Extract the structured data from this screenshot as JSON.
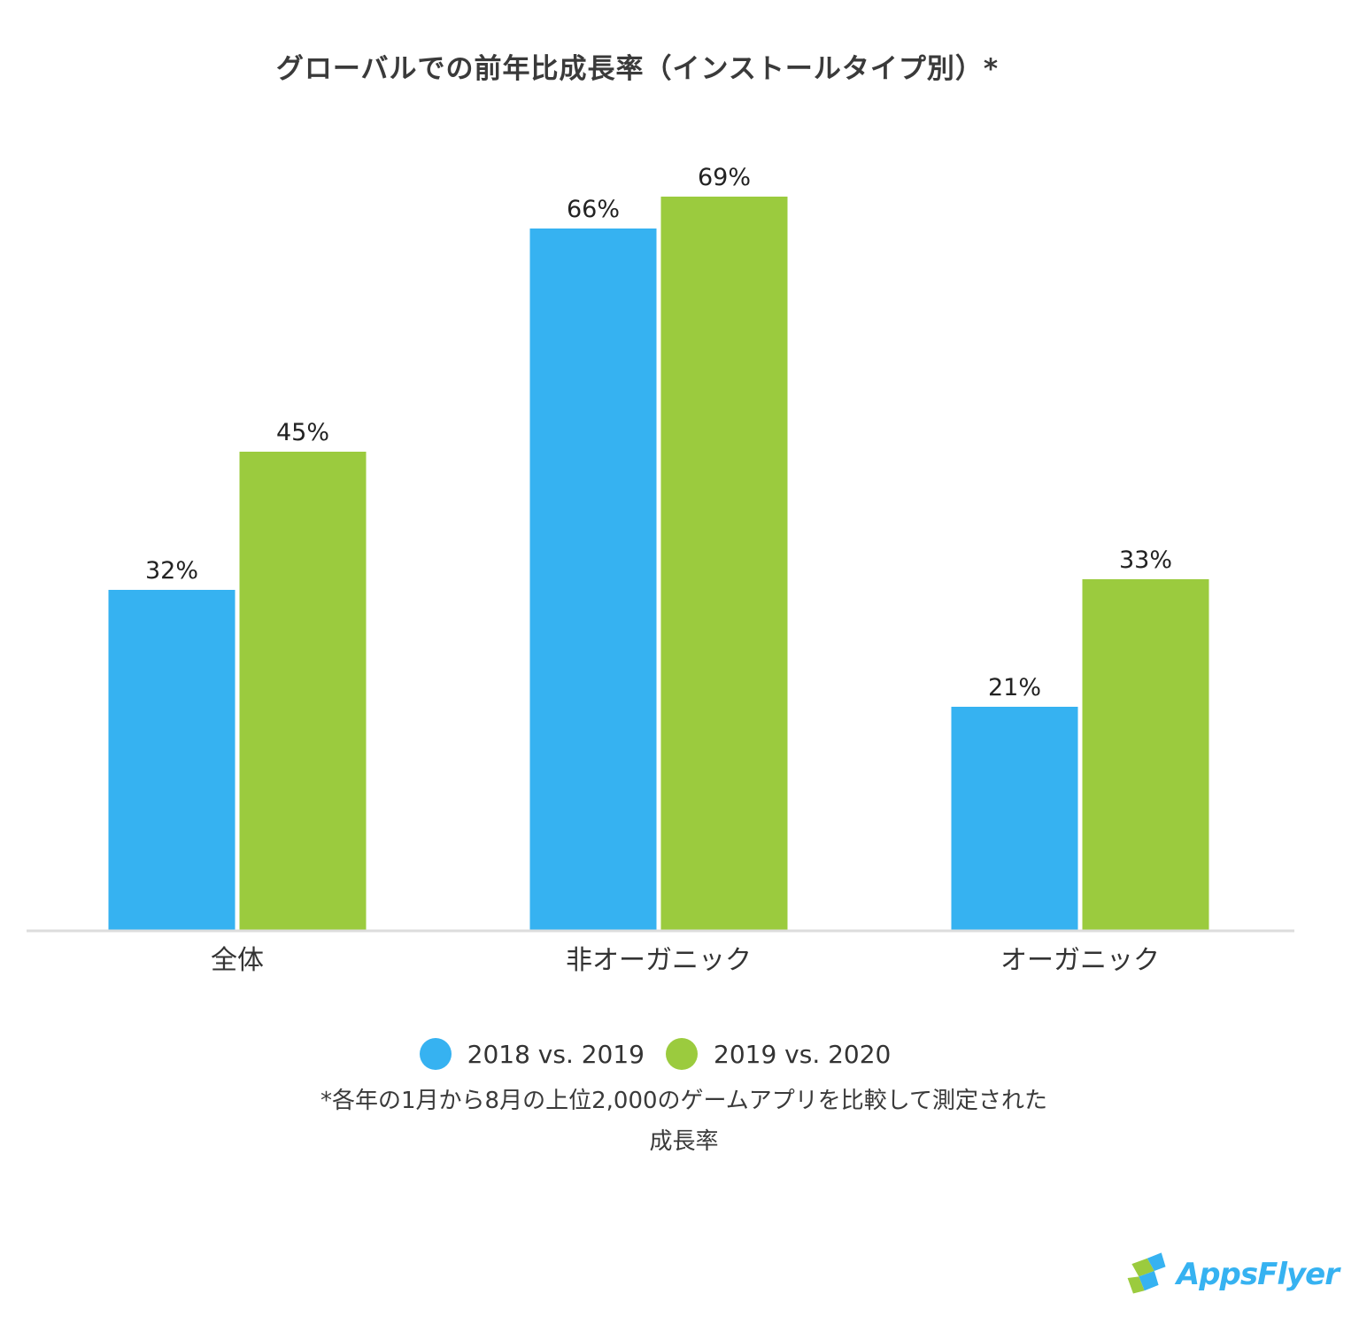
{
  "title": "グローバルでの前年比成長率（インストールタイプ別）*",
  "chart_data": {
    "type": "bar",
    "categories": [
      "全体",
      "非オーガニック",
      "オーガニック"
    ],
    "series": [
      {
        "name": "2018 vs. 2019",
        "color": "#36b2f1",
        "values": [
          32,
          66,
          21
        ],
        "labels": [
          "32%",
          "66%",
          "21%"
        ]
      },
      {
        "name": "2019 vs. 2020",
        "color": "#9bcb3e",
        "values": [
          45,
          69,
          33
        ],
        "labels": [
          "45%",
          "69%",
          "33%"
        ]
      }
    ],
    "ylim": [
      0,
      70
    ],
    "grid": false,
    "legend_position": "bottom-center"
  },
  "legend": {
    "items": [
      {
        "label": "2018 vs. 2019",
        "color": "#36b2f1"
      },
      {
        "label": "2019 vs. 2020",
        "color": "#9bcb3e"
      }
    ]
  },
  "footnote": {
    "line1": "*各年の1月から8月の上位2,000のゲームアプリを比較して測定された",
    "line2": "成長率"
  },
  "logo": {
    "text": "AppsFlyer"
  }
}
